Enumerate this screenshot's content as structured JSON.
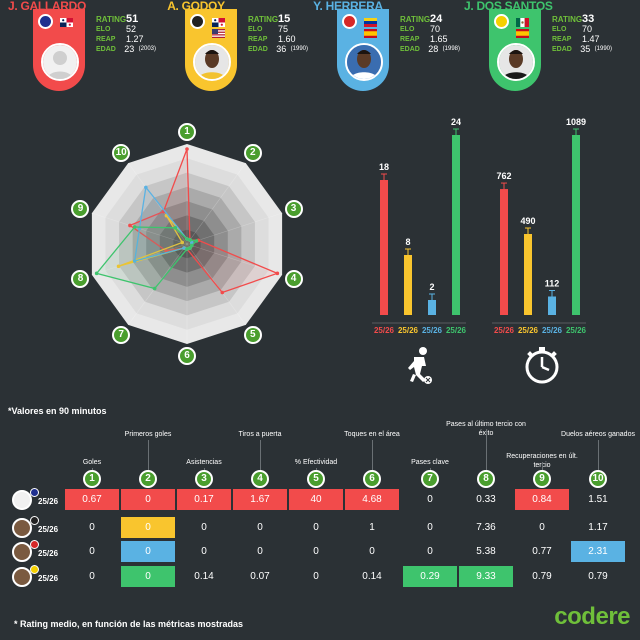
{
  "players": [
    {
      "name": "J. GALLARDO",
      "rating": "51",
      "elo": "52",
      "reap": "1.27",
      "edad": "23",
      "born": "(2003)",
      "color": "#f24b4b",
      "club_color": "#1f2f8f",
      "flag": "panama"
    },
    {
      "name": "A. GODOY",
      "rating": "15",
      "elo": "75",
      "reap": "1.60",
      "edad": "36",
      "born": "(1990)",
      "color": "#f9c52e",
      "club_color": "#222222",
      "flag": "panama"
    },
    {
      "name": "Y. HERRERA",
      "rating": "24",
      "elo": "70",
      "reap": "1.65",
      "edad": "28",
      "born": "(1998)",
      "color": "#5ab2e3",
      "club_color": "#d62828",
      "flag": "venezuela"
    },
    {
      "name": "J. DOS SANTOS",
      "rating": "33",
      "elo": "70",
      "reap": "1.47",
      "edad": "35",
      "born": "(1990)",
      "color": "#3ec46d",
      "club_color": "#f5d000",
      "flag": "mexico"
    }
  ],
  "labels": {
    "rating": "RATING",
    "elo": "ELO",
    "reap": "REAP",
    "edad": "EDAD"
  },
  "note": "*Valores en 90 minutos",
  "footnote": "* Rating medio, en función de las métricas mostradas",
  "brand": "codere",
  "season": "25/26",
  "metrics": [
    {
      "n": "1",
      "label": "Goles"
    },
    {
      "n": "2",
      "label": "Primeros goles"
    },
    {
      "n": "3",
      "label": "Asistencias"
    },
    {
      "n": "4",
      "label": "Tiros a puerta"
    },
    {
      "n": "5",
      "label": "% Efectividad"
    },
    {
      "n": "6",
      "label": "Toques en el área"
    },
    {
      "n": "7",
      "label": "Pases clave"
    },
    {
      "n": "8",
      "label": "Pases al último tercio con éxito"
    },
    {
      "n": "9",
      "label": "Recuperaciones en últ. tercio"
    },
    {
      "n": "10",
      "label": "Duelos aéreos ganados"
    }
  ],
  "table": [
    [
      "0.67",
      "0",
      "0.17",
      "1.67",
      "40",
      "4.68",
      "0",
      "0.33",
      "0.84",
      "1.51"
    ],
    [
      "0",
      "0",
      "0",
      "0",
      "0",
      "1",
      "0",
      "7.36",
      "0",
      "1.17"
    ],
    [
      "0",
      "0",
      "0",
      "0",
      "0",
      "0",
      "0",
      "5.38",
      "0.77",
      "2.31"
    ],
    [
      "0",
      "0",
      "0.14",
      "0.07",
      "0",
      "0.14",
      "0.29",
      "9.33",
      "0.79",
      "0.79"
    ]
  ],
  "highlights": [
    [
      0,
      1,
      2,
      3,
      4,
      5,
      8
    ],
    [
      1
    ],
    [
      1,
      9
    ],
    [
      1,
      6,
      7
    ]
  ],
  "chart_data": [
    {
      "type": "radar",
      "axes": [
        "1",
        "2",
        "3",
        "4",
        "5",
        "6",
        "7",
        "8",
        "9",
        "10"
      ],
      "series": [
        {
          "name": "J. GALLARDO",
          "values": [
            0.95,
            0.05,
            0.12,
            0.95,
            0.6,
            0.05,
            0.05,
            0.22,
            0.6,
            0.4
          ]
        },
        {
          "name": "A. GODOY",
          "values": [
            0.05,
            0.05,
            0.05,
            0.05,
            0.05,
            0.05,
            0.05,
            0.72,
            0.05,
            0.35
          ]
        },
        {
          "name": "Y. HERRERA",
          "values": [
            0.05,
            0.05,
            0.05,
            0.05,
            0.05,
            0.05,
            0.05,
            0.55,
            0.5,
            0.7
          ]
        },
        {
          "name": "J. DOS SANTOS",
          "values": [
            0.05,
            0.05,
            0.1,
            0.05,
            0.05,
            0.05,
            0.55,
            0.95,
            0.55,
            0.2
          ]
        }
      ]
    },
    {
      "type": "bar",
      "categories": [
        "25/26",
        "25/26",
        "25/26",
        "25/26"
      ],
      "values": [
        18,
        8,
        2,
        24
      ],
      "ylim": [
        0,
        24
      ],
      "icon": "football-player-icon"
    },
    {
      "type": "bar",
      "categories": [
        "25/26",
        "25/26",
        "25/26",
        "25/26"
      ],
      "values": [
        762,
        490,
        112,
        1089
      ],
      "ylim": [
        0,
        1089
      ],
      "icon": "stopwatch-icon"
    }
  ]
}
